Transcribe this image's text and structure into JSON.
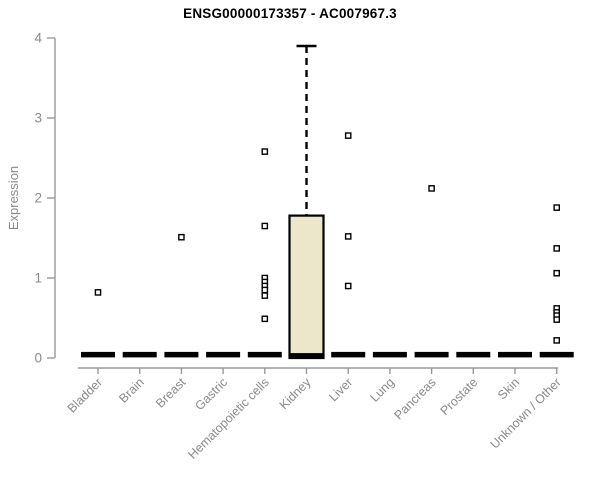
{
  "chart_data": {
    "type": "box",
    "title": "ENSG00000173357 - AC007967.3",
    "ylabel": "Expression",
    "xlabel": "",
    "ylim": [
      0,
      4
    ],
    "yticks": [
      0,
      1,
      2,
      3,
      4
    ],
    "grid": false,
    "legend": null,
    "colors": {
      "box_fill": "#ECE6CB",
      "box_stroke": "#000000",
      "median": "#000000",
      "whisker": "#000000",
      "outlier_fill": "#ffffff",
      "outlier_stroke": "#000000",
      "axis_line": "#9a9a9a",
      "axis_text": "#8a8a8a",
      "title_text": "#000000"
    },
    "categories": [
      "Bladder",
      "Brain",
      "Breast",
      "Gastric",
      "Hematopoietic cells",
      "Kidney",
      "Liver",
      "Lung",
      "Pancreas",
      "Prostate",
      "Skin",
      "Unknown / Other"
    ],
    "boxes": [
      {
        "category": "Bladder",
        "q1": 0,
        "median": 0.02,
        "q3": 0.05,
        "whisker_low": 0,
        "whisker_high": 0.05,
        "outliers": [
          0.82
        ]
      },
      {
        "category": "Brain",
        "q1": 0,
        "median": 0.02,
        "q3": 0.05,
        "whisker_low": 0,
        "whisker_high": 0.05,
        "outliers": []
      },
      {
        "category": "Breast",
        "q1": 0,
        "median": 0.02,
        "q3": 0.05,
        "whisker_low": 0,
        "whisker_high": 0.05,
        "outliers": [
          1.51
        ]
      },
      {
        "category": "Gastric",
        "q1": 0,
        "median": 0.02,
        "q3": 0.05,
        "whisker_low": 0,
        "whisker_high": 0.05,
        "outliers": []
      },
      {
        "category": "Hematopoietic cells",
        "q1": 0,
        "median": 0.02,
        "q3": 0.05,
        "whisker_low": 0,
        "whisker_high": 0.05,
        "outliers": [
          2.58,
          1.65,
          1.0,
          0.95,
          0.9,
          0.85,
          0.78,
          0.49
        ]
      },
      {
        "category": "Kidney",
        "q1": 0,
        "median": 0.03,
        "q3": 1.78,
        "whisker_low": 0,
        "whisker_high": 3.9,
        "outliers": []
      },
      {
        "category": "Liver",
        "q1": 0,
        "median": 0.02,
        "q3": 0.05,
        "whisker_low": 0,
        "whisker_high": 0.05,
        "outliers": [
          2.78,
          1.52,
          0.9
        ]
      },
      {
        "category": "Lung",
        "q1": 0,
        "median": 0.02,
        "q3": 0.05,
        "whisker_low": 0,
        "whisker_high": 0.05,
        "outliers": []
      },
      {
        "category": "Pancreas",
        "q1": 0,
        "median": 0.02,
        "q3": 0.05,
        "whisker_low": 0,
        "whisker_high": 0.05,
        "outliers": [
          2.12
        ]
      },
      {
        "category": "Prostate",
        "q1": 0,
        "median": 0.02,
        "q3": 0.05,
        "whisker_low": 0,
        "whisker_high": 0.05,
        "outliers": []
      },
      {
        "category": "Skin",
        "q1": 0,
        "median": 0.02,
        "q3": 0.05,
        "whisker_low": 0,
        "whisker_high": 0.05,
        "outliers": []
      },
      {
        "category": "Unknown / Other",
        "q1": 0,
        "median": 0.02,
        "q3": 0.05,
        "whisker_low": 0,
        "whisker_high": 0.05,
        "outliers": [
          1.88,
          1.37,
          1.06,
          0.62,
          0.57,
          0.53,
          0.48,
          0.22
        ]
      }
    ]
  }
}
